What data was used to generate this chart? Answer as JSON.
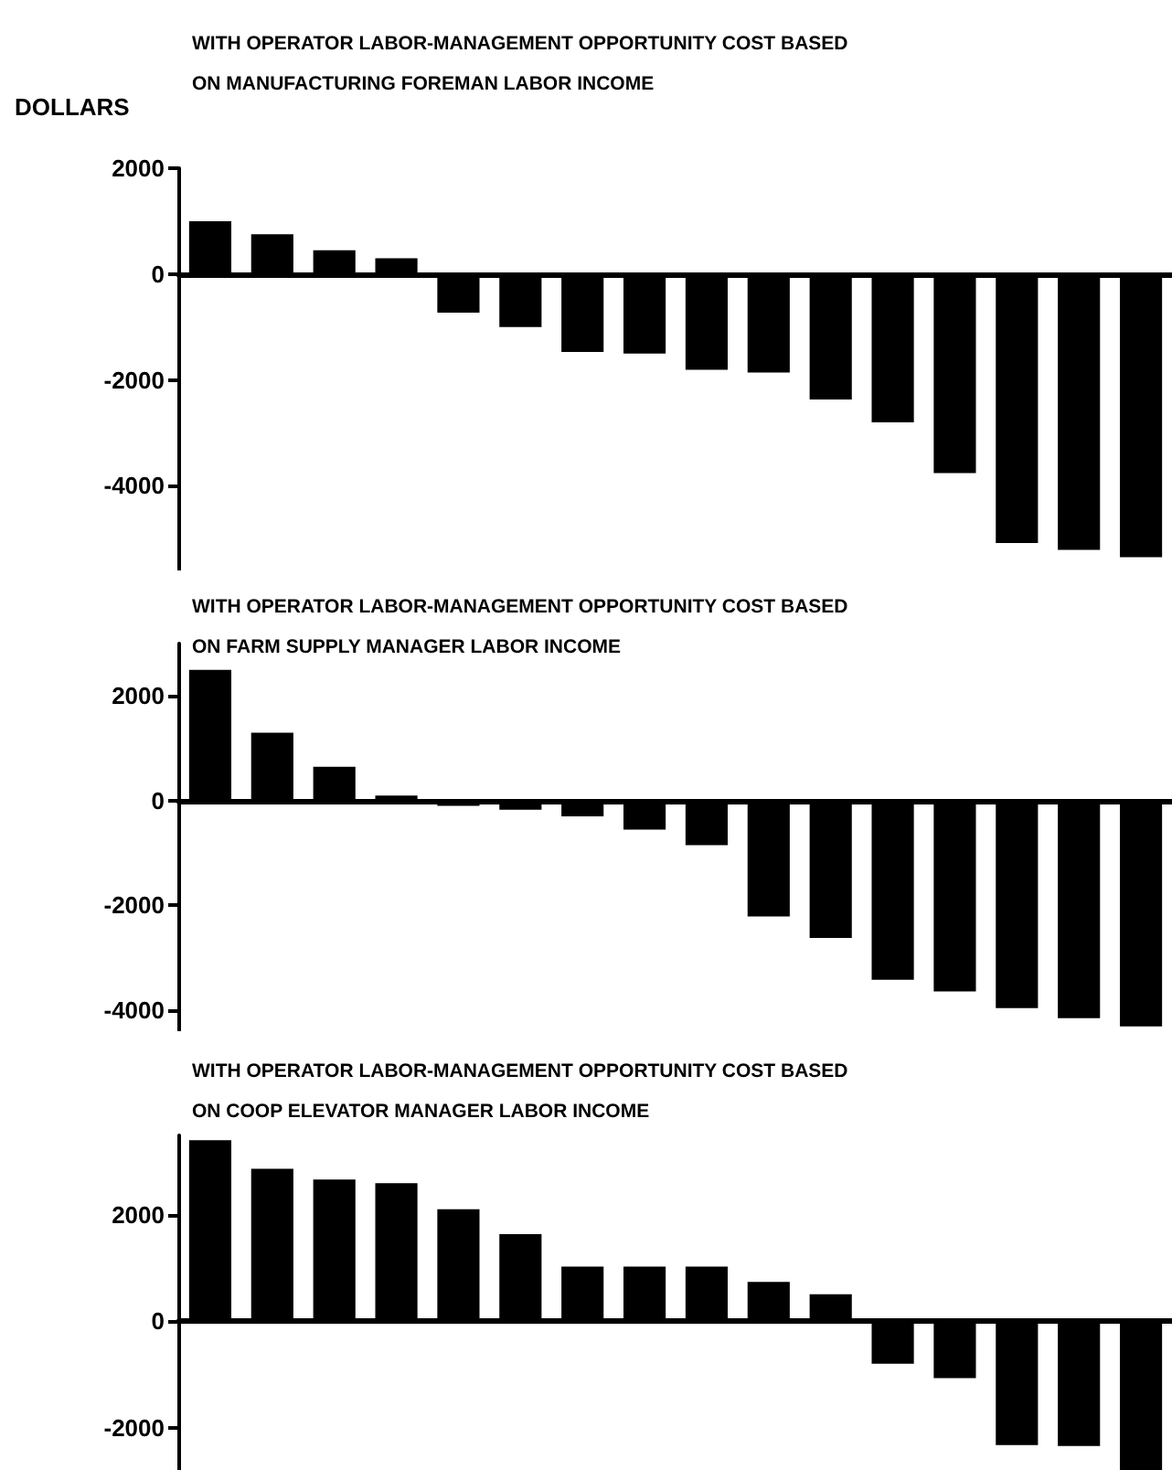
{
  "chart_data": [
    {
      "type": "bar",
      "title": "WITH OPERATOR LABOR-MANAGEMENT OPPORTUNITY COST BASED\nON MANUFACTURING FOREMAN LABOR INCOME",
      "ylabel": "DOLLARS",
      "categories": [
        null,
        null,
        null,
        null,
        null,
        null,
        null,
        null,
        null,
        null,
        null,
        null,
        null,
        null,
        null,
        null
      ],
      "values": [
        1000,
        750,
        450,
        300,
        -730,
        -1000,
        -1470,
        -1500,
        -1810,
        -1860,
        -2370,
        -2800,
        -3760,
        -5080,
        -5210,
        -5350
      ],
      "color": "#000000",
      "ylim": [
        -5600,
        2000
      ],
      "yticks": [
        2000,
        0,
        -2000,
        -4000
      ],
      "tick_labels": "y"
    },
    {
      "type": "bar",
      "title": "WITH OPERATOR LABOR-MANAGEMENT OPPORTUNITY COST BASED\nON FARM SUPPLY MANAGER LABOR INCOME",
      "categories": [
        null,
        null,
        null,
        null,
        null,
        null,
        null,
        null,
        null,
        null,
        null,
        null,
        null,
        null,
        null,
        null
      ],
      "values": [
        2500,
        1300,
        650,
        100,
        -100,
        -170,
        -300,
        -550,
        -850,
        -2210,
        -2620,
        -3420,
        -3640,
        -3960,
        -4150,
        -4310
      ],
      "color": "#000000",
      "ylim": [
        -4400,
        3000
      ],
      "yticks": [
        2000,
        0,
        -2000,
        -4000
      ],
      "tick_labels": "y"
    },
    {
      "type": "bar",
      "title": "WITH OPERATOR LABOR-MANAGEMENT OPPORTUNITY COST BASED\nON COOP ELEVATOR MANAGER LABOR INCOME",
      "categories": [
        null,
        null,
        null,
        null,
        null,
        null,
        null,
        null,
        null,
        null,
        null,
        null,
        null,
        null,
        null,
        null
      ],
      "values": [
        3410,
        2870,
        2670,
        2600,
        2110,
        1640,
        1030,
        1030,
        1030,
        740,
        510,
        -800,
        -1070,
        -2330,
        -2350,
        -2800
      ],
      "color": "#000000",
      "ylim": [
        -2800,
        3500
      ],
      "yticks": [
        2000,
        0,
        -2000
      ],
      "tick_labels": "y"
    }
  ]
}
